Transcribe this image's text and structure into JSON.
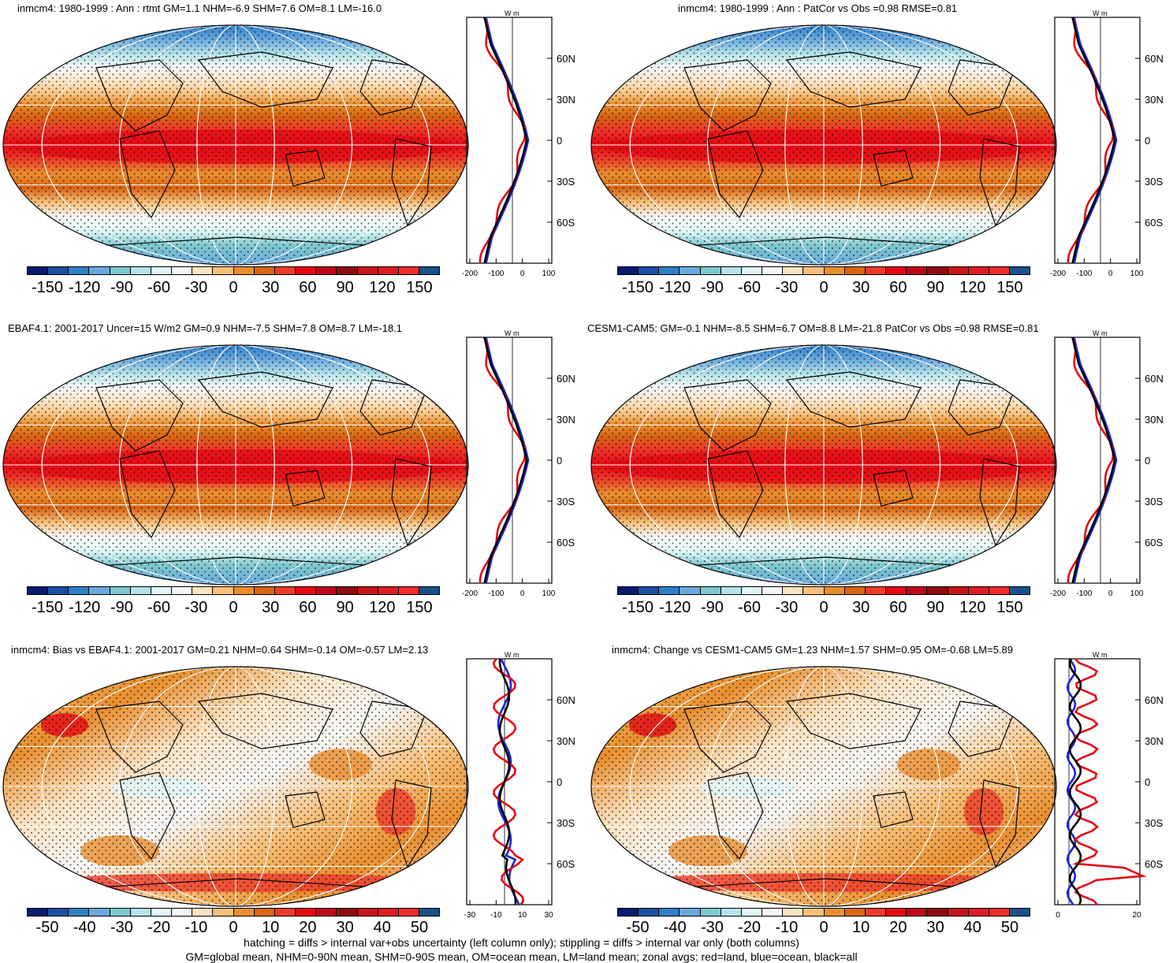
{
  "palette": {
    "full": [
      "#0a1a6e",
      "#1b4fa3",
      "#2f7fc8",
      "#6aa9de",
      "#7fc8cf",
      "#b5e3ea",
      "#dff6f8",
      "#f7f7f7",
      "#fde3c2",
      "#f8c07a",
      "#ea8f2f",
      "#d86612",
      "#ef3b2a",
      "#e50914",
      "#c0051b",
      "#8e0a10",
      "#c5141a",
      "#de1c24",
      "#ef2c2c",
      "#1a508a"
    ],
    "ocean": "#ea8f2f",
    "land_line": "#000000",
    "zonal_land": "#e50914",
    "zonal_ocean": "#1a24d8",
    "zonal_all": "#000000"
  },
  "panels": [
    {
      "title": "inmcm4: 1980-1999 : Ann : rtmt GM=1.1 NHM=-6.9 SHM=7.6 OM=8.1 LM=-16.0",
      "scheme": "full",
      "cbar_labels": [
        "-150",
        "-120",
        "-90",
        "-60",
        "-30",
        "0",
        "30",
        "60",
        "90",
        "120",
        "150"
      ],
      "zonal_ticks": [
        "-200",
        "-100",
        "0",
        "100"
      ],
      "zonal_unit": "W m",
      "lat_labels": [
        "60N",
        "30N",
        "0",
        "30S",
        "60S"
      ]
    },
    {
      "title": "inmcm4: 1980-1999 : Ann : PatCor vs Obs =0.98 RMSE=0.81",
      "scheme": "full",
      "cbar_labels": [
        "-150",
        "-120",
        "-90",
        "-60",
        "-30",
        "0",
        "30",
        "60",
        "90",
        "120",
        "150"
      ],
      "zonal_ticks": [
        "-200",
        "-100",
        "0",
        "100"
      ],
      "zonal_unit": "W m",
      "lat_labels": [
        "60N",
        "30N",
        "0",
        "30S",
        "60S"
      ]
    },
    {
      "title": "EBAF4.1: 2001-2017 Uncer=15 W/m2 GM=0.9 NHM=-7.5 SHM=7.8 OM=8.7 LM=-18.1",
      "scheme": "full",
      "cbar_labels": [
        "-150",
        "-120",
        "-90",
        "-60",
        "-30",
        "0",
        "30",
        "60",
        "90",
        "120",
        "150"
      ],
      "zonal_ticks": [
        "-200",
        "-100",
        "0",
        "100"
      ],
      "zonal_unit": "W m",
      "lat_labels": [
        "60N",
        "30N",
        "0",
        "30S",
        "60S"
      ]
    },
    {
      "title": "CESM1-CAM5: GM=-0.1 NHM=-8.5 SHM=6.7 OM=8.8 LM=-21.8 PatCor vs Obs =0.98 RMSE=0.81",
      "scheme": "full",
      "cbar_labels": [
        "-150",
        "-120",
        "-90",
        "-60",
        "-30",
        "0",
        "30",
        "60",
        "90",
        "120",
        "150"
      ],
      "zonal_ticks": [
        "-200",
        "-100",
        "0",
        "100"
      ],
      "zonal_unit": "W m",
      "lat_labels": [
        "60N",
        "30N",
        "0",
        "30S",
        "60S"
      ]
    },
    {
      "title": "inmcm4: Bias vs EBAF4.1: 2001-2017 GM=0.21 NHM=0.64 SHM=-0.14 OM=-0.57 LM=2.13",
      "scheme": "diff",
      "cbar_labels": [
        "-50",
        "-40",
        "-30",
        "-20",
        "-10",
        "0",
        "10",
        "20",
        "30",
        "40",
        "50"
      ],
      "zonal_ticks": [
        "-30",
        "-10",
        "10",
        "30"
      ],
      "zonal_unit": "W m",
      "lat_labels": [
        "60N",
        "30N",
        "0",
        "30S",
        "60S"
      ]
    },
    {
      "title": "inmcm4: Change vs CESM1-CAM5 GM=1.23 NHM=1.57 SHM=0.95 OM=-0.68 LM=5.89",
      "scheme": "diff",
      "cbar_labels": [
        "-50",
        "-40",
        "-30",
        "-20",
        "-10",
        "0",
        "10",
        "20",
        "30",
        "40",
        "50"
      ],
      "zonal_ticks": [
        "0",
        "20"
      ],
      "zonal_unit": "W m",
      "lat_labels": [
        "60N",
        "30N",
        "0",
        "30S",
        "60S"
      ]
    }
  ],
  "footer": {
    "line1": "hatching = diffs > internal var+obs uncertainty (left column only); stippling = diffs > internal var only (both columns)",
    "line2": "GM=global mean, NHM=0-90N mean, SHM=0-90S mean, OM=ocean mean, LM=land mean; zonal avgs: red=land, blue=ocean, black=all"
  }
}
